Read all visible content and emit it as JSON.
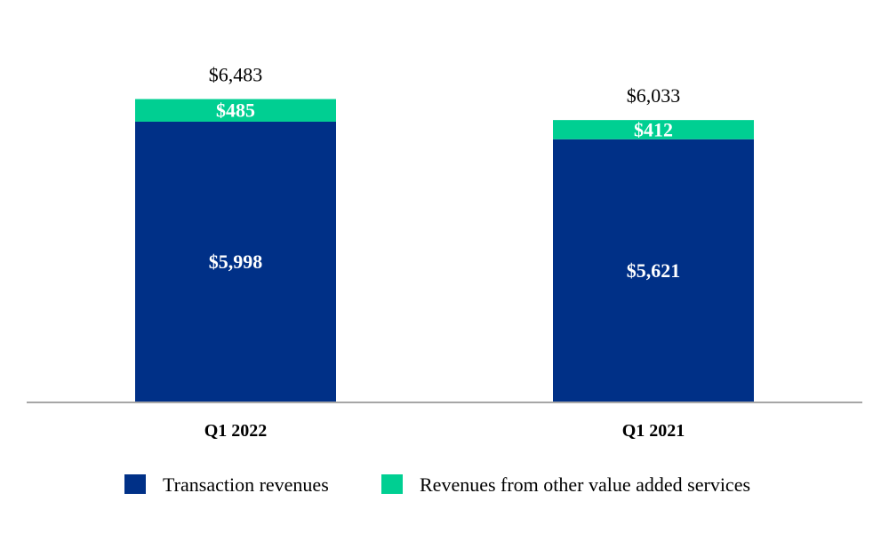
{
  "chart_data": {
    "type": "bar",
    "stacked": true,
    "categories": [
      "Q1 2022",
      "Q1 2021"
    ],
    "series": [
      {
        "name": "Transaction revenues",
        "values": [
          5998,
          5621
        ],
        "labels": [
          "$5,998",
          "$5,621"
        ],
        "color": "#003087"
      },
      {
        "name": "Revenues from other value added services",
        "values": [
          485,
          412
        ],
        "labels": [
          "$485",
          "$412"
        ],
        "color": "#00CF92"
      }
    ],
    "totals": [
      6483,
      6033
    ],
    "total_labels": [
      "$6,483",
      "$6,033"
    ],
    "title": "",
    "xlabel": "",
    "ylabel": "",
    "ylim": [
      0,
      6800
    ],
    "grid": false,
    "legend": "bottom",
    "axis_color": "#a6a6a6"
  }
}
